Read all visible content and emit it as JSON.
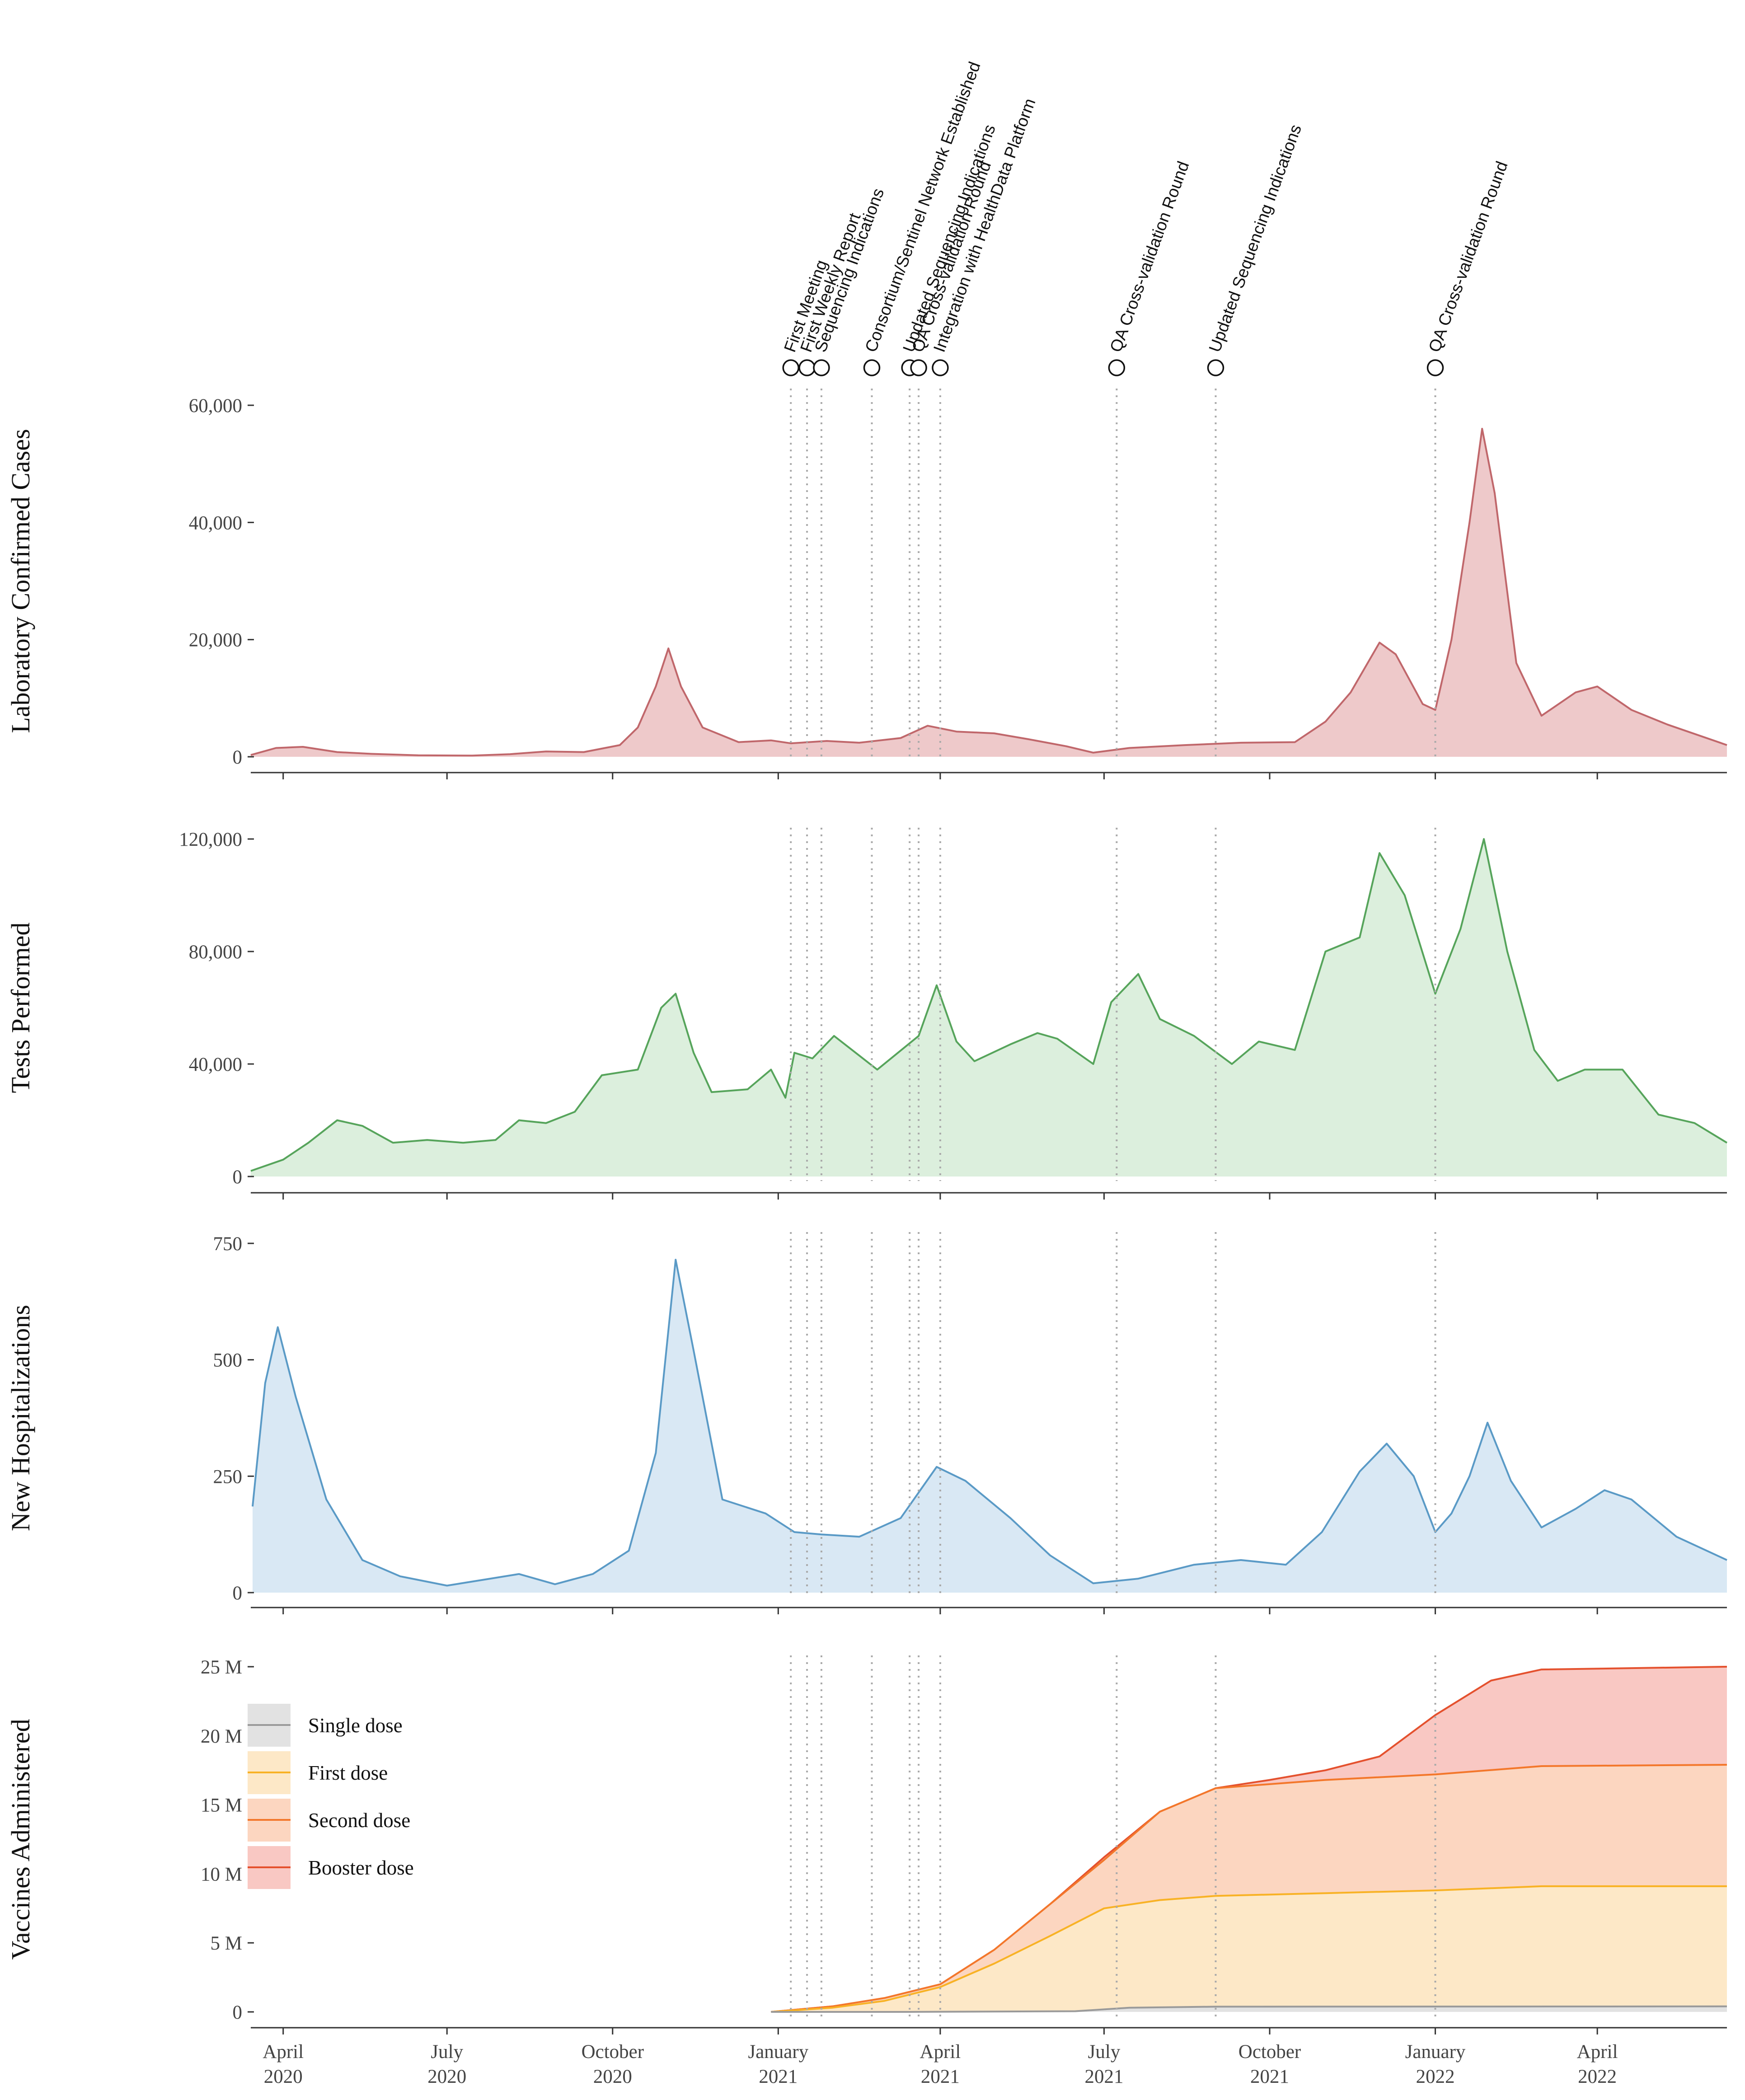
{
  "chart_data": {
    "type": "area",
    "x_dates_note": "weekly points, ISO dates",
    "x_ticks": [
      {
        "date": "2020-04-01",
        "line1": "April",
        "line2": "2020"
      },
      {
        "date": "2020-07-01",
        "line1": "July",
        "line2": "2020"
      },
      {
        "date": "2020-10-01",
        "line1": "October",
        "line2": "2020"
      },
      {
        "date": "2021-01-01",
        "line1": "January",
        "line2": "2021"
      },
      {
        "date": "2021-04-01",
        "line1": "April",
        "line2": "2021"
      },
      {
        "date": "2021-07-01",
        "line1": "July",
        "line2": "2021"
      },
      {
        "date": "2021-10-01",
        "line1": "October",
        "line2": "2021"
      },
      {
        "date": "2022-01-01",
        "line1": "January",
        "line2": "2022"
      },
      {
        "date": "2022-04-01",
        "line1": "April",
        "line2": "2022"
      }
    ],
    "x_range": [
      "2020-03-14",
      "2022-06-12"
    ],
    "events": [
      {
        "date": "2021-01-08",
        "label": "First Meeting"
      },
      {
        "date": "2021-01-17",
        "label": "First Weekly Report"
      },
      {
        "date": "2021-01-25",
        "label": "Sequencing Indications"
      },
      {
        "date": "2021-02-22",
        "label": "Consortium/Sentinel Network Established"
      },
      {
        "date": "2021-03-15",
        "label": "Updated Sequencing Indications"
      },
      {
        "date": "2021-03-20",
        "label": "QA Cross-validation Round"
      },
      {
        "date": "2021-04-01",
        "label": "Integration with HealthData Platform"
      },
      {
        "date": "2021-07-08",
        "label": "QA Cross-validation Round"
      },
      {
        "date": "2021-09-01",
        "label": "Updated Sequencing Indications"
      },
      {
        "date": "2022-01-01",
        "label": "QA Cross-validation Round"
      }
    ],
    "panels": [
      {
        "id": "cases",
        "ylabel": "Laboratory Confirmed Cases",
        "ylim": [
          0,
          60000
        ],
        "ticks": [
          {
            "v": 0,
            "label": "0"
          },
          {
            "v": 20000,
            "label": "20,000"
          },
          {
            "v": 40000,
            "label": "40,000"
          },
          {
            "v": 60000,
            "label": "60,000"
          }
        ],
        "line_color": "#c0676b",
        "fill_color": "#eec9ca",
        "series": [
          [
            "2020-03-14",
            300
          ],
          [
            "2020-03-28",
            1500
          ],
          [
            "2020-04-12",
            1700
          ],
          [
            "2020-05-01",
            800
          ],
          [
            "2020-05-20",
            500
          ],
          [
            "2020-06-15",
            250
          ],
          [
            "2020-07-15",
            200
          ],
          [
            "2020-08-05",
            450
          ],
          [
            "2020-08-25",
            900
          ],
          [
            "2020-09-15",
            800
          ],
          [
            "2020-10-05",
            2000
          ],
          [
            "2020-10-15",
            5000
          ],
          [
            "2020-10-25",
            12000
          ],
          [
            "2020-11-01",
            18500
          ],
          [
            "2020-11-08",
            12000
          ],
          [
            "2020-11-20",
            5000
          ],
          [
            "2020-12-10",
            2500
          ],
          [
            "2020-12-28",
            2800
          ],
          [
            "2021-01-08",
            2300
          ],
          [
            "2021-01-28",
            2700
          ],
          [
            "2021-02-15",
            2400
          ],
          [
            "2021-03-10",
            3200
          ],
          [
            "2021-03-25",
            5300
          ],
          [
            "2021-04-10",
            4300
          ],
          [
            "2021-05-01",
            4000
          ],
          [
            "2021-05-20",
            3000
          ],
          [
            "2021-06-10",
            1800
          ],
          [
            "2021-06-25",
            700
          ],
          [
            "2021-07-15",
            1500
          ],
          [
            "2021-08-15",
            2000
          ],
          [
            "2021-09-15",
            2400
          ],
          [
            "2021-10-15",
            2500
          ],
          [
            "2021-11-01",
            6000
          ],
          [
            "2021-11-15",
            11000
          ],
          [
            "2021-12-01",
            19500
          ],
          [
            "2021-12-10",
            17500
          ],
          [
            "2021-12-25",
            9000
          ],
          [
            "2022-01-01",
            8000
          ],
          [
            "2022-01-10",
            20000
          ],
          [
            "2022-01-20",
            40000
          ],
          [
            "2022-01-27",
            56000
          ],
          [
            "2022-02-03",
            45000
          ],
          [
            "2022-02-15",
            16000
          ],
          [
            "2022-03-01",
            7000
          ],
          [
            "2022-03-20",
            11000
          ],
          [
            "2022-04-01",
            12000
          ],
          [
            "2022-04-20",
            8000
          ],
          [
            "2022-05-10",
            5500
          ],
          [
            "2022-06-12",
            2000
          ]
        ]
      },
      {
        "id": "tests",
        "ylabel": "Tests Performed",
        "ylim": [
          0,
          120000
        ],
        "ticks": [
          {
            "v": 0,
            "label": "0"
          },
          {
            "v": 40000,
            "label": "40,000"
          },
          {
            "v": 80000,
            "label": "80,000"
          },
          {
            "v": 120000,
            "label": "120,000"
          }
        ],
        "line_color": "#56a45b",
        "fill_color": "#dcefdd",
        "series": [
          [
            "2020-03-14",
            2000
          ],
          [
            "2020-04-01",
            6000
          ],
          [
            "2020-04-15",
            12000
          ],
          [
            "2020-05-01",
            20000
          ],
          [
            "2020-05-15",
            18000
          ],
          [
            "2020-06-01",
            12000
          ],
          [
            "2020-06-20",
            13000
          ],
          [
            "2020-07-10",
            12000
          ],
          [
            "2020-07-28",
            13000
          ],
          [
            "2020-08-10",
            20000
          ],
          [
            "2020-08-25",
            19000
          ],
          [
            "2020-09-10",
            23000
          ],
          [
            "2020-09-25",
            36000
          ],
          [
            "2020-10-15",
            38000
          ],
          [
            "2020-10-28",
            60000
          ],
          [
            "2020-11-05",
            65000
          ],
          [
            "2020-11-15",
            44000
          ],
          [
            "2020-11-25",
            30000
          ],
          [
            "2020-12-15",
            31000
          ],
          [
            "2020-12-28",
            38000
          ],
          [
            "2021-01-05",
            28000
          ],
          [
            "2021-01-10",
            44000
          ],
          [
            "2021-01-20",
            42000
          ],
          [
            "2021-02-01",
            50000
          ],
          [
            "2021-02-25",
            38000
          ],
          [
            "2021-03-20",
            50000
          ],
          [
            "2021-03-30",
            68000
          ],
          [
            "2021-04-10",
            48000
          ],
          [
            "2021-04-20",
            41000
          ],
          [
            "2021-05-10",
            47000
          ],
          [
            "2021-05-25",
            51000
          ],
          [
            "2021-06-05",
            49000
          ],
          [
            "2021-06-25",
            40000
          ],
          [
            "2021-07-05",
            62000
          ],
          [
            "2021-07-20",
            72000
          ],
          [
            "2021-08-01",
            56000
          ],
          [
            "2021-08-20",
            50000
          ],
          [
            "2021-09-10",
            40000
          ],
          [
            "2021-09-25",
            48000
          ],
          [
            "2021-10-15",
            45000
          ],
          [
            "2021-11-01",
            80000
          ],
          [
            "2021-11-20",
            85000
          ],
          [
            "2021-12-01",
            115000
          ],
          [
            "2021-12-15",
            100000
          ],
          [
            "2022-01-01",
            65000
          ],
          [
            "2022-01-15",
            88000
          ],
          [
            "2022-01-28",
            120000
          ],
          [
            "2022-02-10",
            80000
          ],
          [
            "2022-02-25",
            45000
          ],
          [
            "2022-03-10",
            34000
          ],
          [
            "2022-03-25",
            38000
          ],
          [
            "2022-04-15",
            38000
          ],
          [
            "2022-05-05",
            22000
          ],
          [
            "2022-05-25",
            19000
          ],
          [
            "2022-06-12",
            12000
          ]
        ]
      },
      {
        "id": "hosp",
        "ylabel": "New Hospitalizations",
        "ylim": [
          0,
          750
        ],
        "ticks": [
          {
            "v": 0,
            "label": "0"
          },
          {
            "v": 250,
            "label": "250"
          },
          {
            "v": 500,
            "label": "500"
          },
          {
            "v": 750,
            "label": "750"
          }
        ],
        "line_color": "#5a9ac6",
        "fill_color": "#d9e8f4",
        "series": [
          [
            "2020-03-15",
            185
          ],
          [
            "2020-03-22",
            450
          ],
          [
            "2020-03-29",
            570
          ],
          [
            "2020-04-08",
            420
          ],
          [
            "2020-04-25",
            200
          ],
          [
            "2020-05-15",
            70
          ],
          [
            "2020-06-05",
            35
          ],
          [
            "2020-07-01",
            15
          ],
          [
            "2020-07-25",
            30
          ],
          [
            "2020-08-10",
            40
          ],
          [
            "2020-08-30",
            18
          ],
          [
            "2020-09-20",
            40
          ],
          [
            "2020-10-10",
            90
          ],
          [
            "2020-10-25",
            300
          ],
          [
            "2020-11-05",
            715
          ],
          [
            "2020-11-15",
            520
          ],
          [
            "2020-12-01",
            200
          ],
          [
            "2020-12-25",
            170
          ],
          [
            "2021-01-10",
            130
          ],
          [
            "2021-01-25",
            125
          ],
          [
            "2021-02-15",
            120
          ],
          [
            "2021-03-10",
            160
          ],
          [
            "2021-03-30",
            270
          ],
          [
            "2021-04-15",
            240
          ],
          [
            "2021-05-10",
            160
          ],
          [
            "2021-06-01",
            80
          ],
          [
            "2021-06-25",
            20
          ],
          [
            "2021-07-20",
            30
          ],
          [
            "2021-08-20",
            60
          ],
          [
            "2021-09-15",
            70
          ],
          [
            "2021-10-10",
            60
          ],
          [
            "2021-10-30",
            130
          ],
          [
            "2021-11-20",
            260
          ],
          [
            "2021-12-05",
            320
          ],
          [
            "2021-12-20",
            250
          ],
          [
            "2022-01-01",
            130
          ],
          [
            "2022-01-10",
            170
          ],
          [
            "2022-01-20",
            250
          ],
          [
            "2022-01-30",
            365
          ],
          [
            "2022-02-12",
            240
          ],
          [
            "2022-03-01",
            140
          ],
          [
            "2022-03-20",
            180
          ],
          [
            "2022-04-05",
            220
          ],
          [
            "2022-04-20",
            200
          ],
          [
            "2022-05-15",
            120
          ],
          [
            "2022-06-12",
            70
          ]
        ]
      },
      {
        "id": "vacc",
        "ylabel": "Vaccines Administered",
        "ylim": [
          0,
          25000000
        ],
        "ticks": [
          {
            "v": 0,
            "label": "0"
          },
          {
            "v": 5000000,
            "label": "5 M"
          },
          {
            "v": 10000000,
            "label": "10 M"
          },
          {
            "v": 15000000,
            "label": "15 M"
          },
          {
            "v": 20000000,
            "label": "20 M"
          },
          {
            "v": 25000000,
            "label": "25 M"
          }
        ],
        "stack": [
          {
            "name": "Single dose",
            "line_color": "#9a9a9a",
            "fill_color": "#e2e2e2",
            "series": [
              [
                "2020-12-28",
                0
              ],
              [
                "2021-03-15",
                0
              ],
              [
                "2021-06-15",
                50000
              ],
              [
                "2021-07-15",
                300000
              ],
              [
                "2021-09-01",
                380000
              ],
              [
                "2022-06-12",
                400000
              ]
            ]
          },
          {
            "name": "First dose",
            "line_color": "#f8b225",
            "fill_color": "#fde8c7",
            "series": [
              [
                "2020-12-28",
                0
              ],
              [
                "2021-01-31",
                300000
              ],
              [
                "2021-03-01",
                800000
              ],
              [
                "2021-04-01",
                1800000
              ],
              [
                "2021-05-01",
                3500000
              ],
              [
                "2021-06-01",
                5500000
              ],
              [
                "2021-07-01",
                7500000
              ],
              [
                "2021-08-01",
                8100000
              ],
              [
                "2021-09-01",
                8400000
              ],
              [
                "2021-11-01",
                8600000
              ],
              [
                "2022-01-01",
                8800000
              ],
              [
                "2022-03-01",
                9100000
              ],
              [
                "2022-06-12",
                9100000
              ]
            ]
          },
          {
            "name": "Second dose",
            "line_color": "#f3772b",
            "fill_color": "#fcd6c0",
            "series": [
              [
                "2020-12-28",
                0
              ],
              [
                "2021-01-31",
                400000
              ],
              [
                "2021-03-01",
                1000000
              ],
              [
                "2021-04-01",
                2000000
              ],
              [
                "2021-05-01",
                4500000
              ],
              [
                "2021-06-01",
                7800000
              ],
              [
                "2021-07-01",
                11000000
              ],
              [
                "2021-08-01",
                14500000
              ],
              [
                "2021-09-01",
                16200000
              ],
              [
                "2021-11-01",
                16800000
              ],
              [
                "2022-01-01",
                17200000
              ],
              [
                "2022-03-01",
                17800000
              ],
              [
                "2022-06-12",
                17900000
              ]
            ]
          },
          {
            "name": "Booster dose",
            "line_color": "#e4512e",
            "fill_color": "#f9c8c3",
            "series": [
              [
                "2020-12-28",
                0
              ],
              [
                "2021-01-31",
                400000
              ],
              [
                "2021-03-01",
                1000000
              ],
              [
                "2021-04-01",
                2000000
              ],
              [
                "2021-05-01",
                4500000
              ],
              [
                "2021-06-01",
                7800000
              ],
              [
                "2021-07-01",
                11200000
              ],
              [
                "2021-08-01",
                14500000
              ],
              [
                "2021-09-01",
                16200000
              ],
              [
                "2021-10-01",
                16800000
              ],
              [
                "2021-11-01",
                17500000
              ],
              [
                "2021-12-01",
                18500000
              ],
              [
                "2022-01-01",
                21500000
              ],
              [
                "2022-02-01",
                24000000
              ],
              [
                "2022-03-01",
                24800000
              ],
              [
                "2022-06-12",
                25000000
              ]
            ]
          }
        ]
      }
    ]
  }
}
